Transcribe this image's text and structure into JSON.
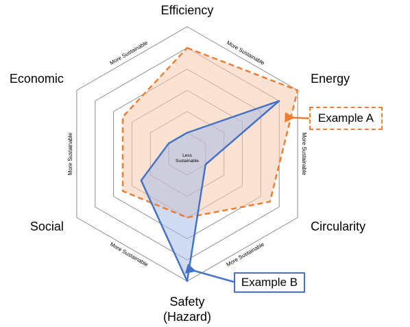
{
  "axes": [
    {
      "label_lines": [
        "Efficiency"
      ]
    },
    {
      "label_lines": [
        "Energy"
      ]
    },
    {
      "label_lines": [
        "Circularity"
      ]
    },
    {
      "label_lines": [
        "Safety",
        "(Hazard)"
      ]
    },
    {
      "label_lines": [
        "Social"
      ]
    },
    {
      "label_lines": [
        "Economic"
      ]
    }
  ],
  "ring_count": 6,
  "direction_label": "More Sustainable",
  "center_label": [
    "Less",
    "Sustainable"
  ],
  "series": [
    {
      "name": "Example A",
      "values": [
        5,
        6,
        4.5,
        3,
        3.5,
        3.5
      ],
      "line_color": "#ED7D31",
      "fill_color": "#F8CBAD",
      "line_style": "dashed"
    },
    {
      "name": "Example B",
      "values": [
        1,
        5,
        1,
        6,
        2.5,
        1
      ],
      "line_color": "#4472C4",
      "fill_color": "#A9BCE6",
      "line_style": "solid"
    }
  ],
  "grid_color": "#8c8c8c"
}
